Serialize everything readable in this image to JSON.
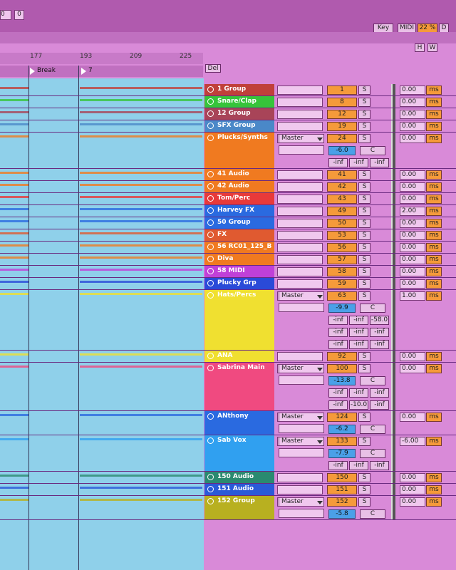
{
  "toolbar": {
    "field1": "0",
    "field2": "0",
    "key": "Key",
    "midi": "MIDI",
    "cpu": "22 %",
    "disk": "D",
    "h": "H",
    "w": "W"
  },
  "ruler": [
    "177",
    "193",
    "209",
    "225"
  ],
  "locators": [
    "Break",
    "7"
  ],
  "del": "Del",
  "tracks": [
    {
      "name": "1 Group",
      "color": "#c0403a",
      "number": "1",
      "solo": "S",
      "delay": "0.00",
      "unit": "ms"
    },
    {
      "name": "Snare/Clap",
      "color": "#36c43a",
      "number": "8",
      "solo": "S",
      "delay": "0.00",
      "unit": "ms"
    },
    {
      "name": "12 Group",
      "color": "#a84458",
      "number": "12",
      "solo": "S",
      "delay": "0.00",
      "unit": "ms"
    },
    {
      "name": "SFX Group",
      "color": "#4a88c8",
      "number": "19",
      "solo": "S",
      "delay": "0.00",
      "unit": "ms"
    },
    {
      "name": "Plucks/Synths",
      "color": "#f07a20",
      "routing": "Master",
      "number": "24",
      "solo": "S",
      "delay": "0.00",
      "unit": "ms",
      "volume": "-6.0",
      "pan": "C",
      "sends": [
        [
          "-inf",
          "-inf",
          "-inf"
        ]
      ]
    },
    {
      "name": "41 Audio",
      "color": "#f07a20",
      "number": "41",
      "solo": "S",
      "delay": "0.00",
      "unit": "ms"
    },
    {
      "name": "42 Audio",
      "color": "#f07a20",
      "number": "42",
      "solo": "S",
      "delay": "0.00",
      "unit": "ms"
    },
    {
      "name": "Tom/Perc",
      "color": "#e83a3a",
      "number": "43",
      "solo": "S",
      "delay": "0.00",
      "unit": "ms"
    },
    {
      "name": "Harvey FX",
      "color": "#2a6ae0",
      "number": "49",
      "solo": "S",
      "delay": "2.00",
      "unit": "ms"
    },
    {
      "name": "50 Group",
      "color": "#2a6ae0",
      "number": "50",
      "solo": "S",
      "delay": "0.00",
      "unit": "ms"
    },
    {
      "name": "FX",
      "color": "#e05a30",
      "number": "53",
      "solo": "S",
      "delay": "0.00",
      "unit": "ms"
    },
    {
      "name": "56 RC01_125_B",
      "color": "#f07a20",
      "number": "56",
      "solo": "S",
      "delay": "0.00",
      "unit": "ms"
    },
    {
      "name": "Diva",
      "color": "#f07a20",
      "number": "57",
      "solo": "S",
      "delay": "0.00",
      "unit": "ms"
    },
    {
      "name": "58 MIDI",
      "color": "#c040d8",
      "number": "58",
      "solo": "S",
      "delay": "0.00",
      "unit": "ms"
    },
    {
      "name": "Plucky Grp",
      "color": "#2a4ad8",
      "number": "59",
      "solo": "S",
      "delay": "0.00",
      "unit": "ms"
    },
    {
      "name": "Hats/Percs",
      "color": "#f0e030",
      "routing": "Master",
      "number": "63",
      "solo": "S",
      "delay": "1.00",
      "unit": "ms",
      "volume": "-9.9",
      "pan": "C",
      "sends": [
        [
          "-inf",
          "-inf",
          "-58.0"
        ],
        [
          "-inf",
          "-inf",
          "-inf"
        ],
        [
          "-inf",
          "-inf",
          "-inf"
        ]
      ]
    },
    {
      "name": "ANA",
      "color": "#f0e030",
      "number": "92",
      "solo": "S",
      "delay": "0.00",
      "unit": "ms"
    },
    {
      "name": "Sabrina Main",
      "color": "#f04a80",
      "routing": "Master",
      "number": "100",
      "solo": "S",
      "delay": "0.00",
      "unit": "ms",
      "volume": "-13.8",
      "pan": "C",
      "sends": [
        [
          "-inf",
          "-inf",
          "-inf"
        ],
        [
          "-inf",
          "-10.0",
          "-inf"
        ]
      ]
    },
    {
      "name": "ANthony",
      "color": "#2a6ae0",
      "routing": "Master",
      "number": "124",
      "solo": "S",
      "delay": "0.00",
      "unit": "ms",
      "volume": "-6.2",
      "pan": "C"
    },
    {
      "name": "Sab Vox",
      "color": "#30a0f0",
      "routing": "Master",
      "number": "133",
      "solo": "S",
      "delay": "-6.00",
      "unit": "ms",
      "volume": "-7.9",
      "pan": "C",
      "sends": [
        [
          "-inf",
          "-inf",
          "-inf"
        ]
      ]
    },
    {
      "name": "150 Audio",
      "color": "#2a8a70",
      "number": "150",
      "solo": "S",
      "delay": "0.00",
      "unit": "ms"
    },
    {
      "name": "151 Audio",
      "color": "#2a5ad8",
      "number": "151",
      "solo": "S",
      "delay": "0.00",
      "unit": "ms"
    },
    {
      "name": "152 Group",
      "color": "#b8b020",
      "routing": "Master",
      "number": "152",
      "solo": "S",
      "delay": "0.00",
      "unit": "ms",
      "volume": "-5.8",
      "pan": "C"
    }
  ]
}
